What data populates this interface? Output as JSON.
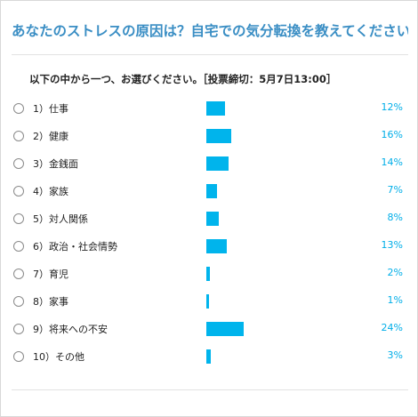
{
  "poll": {
    "title": "あなたのストレスの原因は？自宅での気分転換を教えてください",
    "question": "以下の中から一つ、お選びください。［投票締切：5月7日13:00］",
    "accent_color": "#3a8ec4",
    "bar_color": "#00b4ec",
    "options": [
      {
        "label": "1）仕事",
        "percent_label": "12%",
        "percent": 12
      },
      {
        "label": "2）健康",
        "percent_label": "16%",
        "percent": 16
      },
      {
        "label": "3）金銭面",
        "percent_label": "14%",
        "percent": 14
      },
      {
        "label": "4）家族",
        "percent_label": "7%",
        "percent": 7
      },
      {
        "label": "5）対人関係",
        "percent_label": "8%",
        "percent": 8
      },
      {
        "label": "6）政治・社会情勢",
        "percent_label": "13%",
        "percent": 13
      },
      {
        "label": "7）育児",
        "percent_label": "2%",
        "percent": 2
      },
      {
        "label": "8）家事",
        "percent_label": "1%",
        "percent": 1
      },
      {
        "label": "9）将来への不安",
        "percent_label": "24%",
        "percent": 24
      },
      {
        "label": "10）その他",
        "percent_label": "3%",
        "percent": 3
      }
    ]
  }
}
